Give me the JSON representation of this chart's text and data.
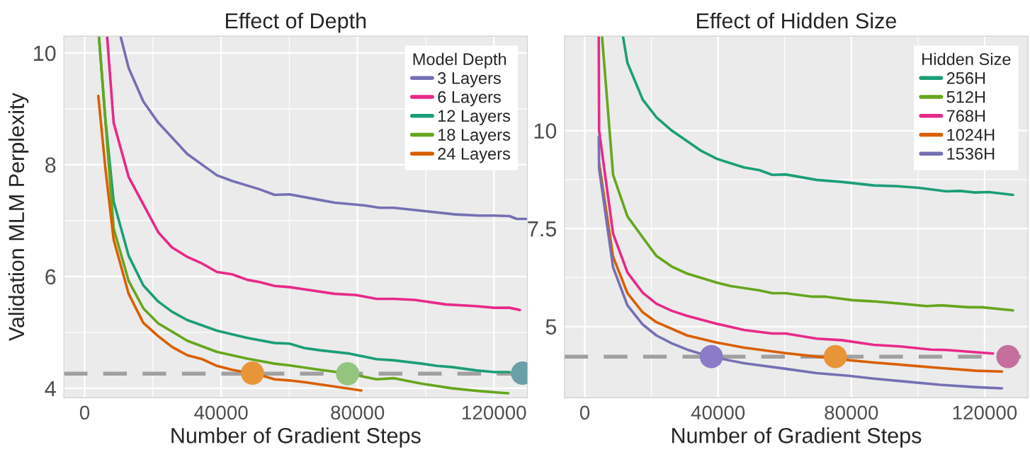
{
  "chart_data": [
    {
      "type": "line",
      "title": "Effect of Depth",
      "xlabel": "Number of Gradient Steps",
      "ylabel": "Validation MLM Perplexity",
      "legend_title": "Model Depth",
      "legend": "top right",
      "grid": true,
      "xlim": [
        -6100,
        129800
      ],
      "xticks": [
        0,
        40000,
        80000,
        120000
      ],
      "ylim": [
        3.83,
        10.3
      ],
      "yticks": [
        4,
        6,
        8,
        10
      ],
      "ref_lines": [
        {
          "axis": "y",
          "value": 4.26,
          "color": "#a0a0a0",
          "line_style": "dashed"
        }
      ],
      "series": [
        {
          "name": "3 Layers",
          "color": "#7570b3",
          "x": [
            10600,
            12900,
            17200,
            21600,
            30100,
            38800,
            43200,
            51300,
            55700,
            60000,
            68900,
            73300,
            82200,
            86500,
            90700,
            99800,
            108700,
            115700,
            120000,
            124600,
            126700,
            129500
          ],
          "values": [
            10.28,
            9.73,
            9.13,
            8.75,
            8.19,
            7.81,
            7.71,
            7.56,
            7.46,
            7.47,
            7.37,
            7.32,
            7.27,
            7.23,
            7.23,
            7.17,
            7.11,
            7.09,
            7.09,
            7.08,
            7.03,
            7.03
          ]
        },
        {
          "name": "6 Layers",
          "color": "#e7298a",
          "x": [
            6600,
            8500,
            12900,
            17200,
            21600,
            25600,
            30100,
            34500,
            38800,
            43200,
            47700,
            51300,
            55700,
            60000,
            64400,
            73300,
            79400,
            85600,
            90700,
            96800,
            105900,
            114600,
            120100,
            124600,
            127600
          ],
          "values": [
            10.28,
            8.75,
            7.78,
            7.29,
            6.79,
            6.52,
            6.35,
            6.23,
            6.08,
            6.04,
            5.94,
            5.9,
            5.83,
            5.81,
            5.77,
            5.69,
            5.67,
            5.6,
            5.6,
            5.58,
            5.5,
            5.47,
            5.44,
            5.44,
            5.4
          ]
        },
        {
          "name": "12 Layers",
          "color": "#1b9e77",
          "x": [
            4200,
            6100,
            8500,
            12900,
            17200,
            21600,
            25600,
            30100,
            38800,
            47700,
            55700,
            60000,
            64400,
            68900,
            77700,
            85600,
            90700,
            98900,
            103300,
            107600,
            114800,
            120100,
            124600
          ],
          "values": [
            10.28,
            8.8,
            7.34,
            6.37,
            5.84,
            5.55,
            5.37,
            5.22,
            5.03,
            4.9,
            4.81,
            4.8,
            4.72,
            4.68,
            4.62,
            4.52,
            4.5,
            4.44,
            4.4,
            4.38,
            4.32,
            4.29,
            4.29
          ]
        },
        {
          "name": "18 Layers",
          "color": "#66a61e",
          "x": [
            4200,
            8500,
            12900,
            17200,
            21600,
            30100,
            38800,
            47700,
            55700,
            60000,
            68900,
            77700,
            85600,
            90700,
            98900,
            107600,
            115700,
            124200
          ],
          "values": [
            10.28,
            6.86,
            5.92,
            5.43,
            5.16,
            4.85,
            4.65,
            4.53,
            4.44,
            4.41,
            4.33,
            4.26,
            4.16,
            4.18,
            4.08,
            4.0,
            3.95,
            3.91
          ]
        },
        {
          "name": "24 Layers",
          "color": "#d95f02",
          "x": [
            4000,
            6100,
            8500,
            12900,
            17200,
            21600,
            25600,
            30100,
            34500,
            38800,
            43200,
            51300,
            55700,
            60000,
            64400,
            73300,
            81100
          ],
          "values": [
            9.23,
            7.92,
            6.66,
            5.69,
            5.17,
            4.93,
            4.74,
            4.59,
            4.52,
            4.4,
            4.33,
            4.24,
            4.16,
            4.14,
            4.11,
            4.03,
            3.96
          ]
        },
        {
          "type": "scatter",
          "marker": "circle",
          "x": [
            49200,
            77100,
            128400
          ],
          "values": [
            4.27,
            4.26,
            4.27
          ],
          "colors": [
            "#e8953a",
            "#94c47d",
            "#6a9fa8"
          ]
        }
      ]
    },
    {
      "type": "line",
      "title": "Effect of Hidden Size",
      "xlabel": "Number of Gradient Steps",
      "legend_title": "Hidden Size",
      "legend": "top right",
      "grid": true,
      "xlim": [
        -6100,
        133000
      ],
      "xticks": [
        0,
        40000,
        80000,
        120000
      ],
      "ylim": [
        3.18,
        12.41
      ],
      "yticks": [
        5,
        7.5,
        10
      ],
      "ref_lines": [
        {
          "axis": "y",
          "value": 4.23,
          "color": "#a0a0a0",
          "line_style": "dashed"
        }
      ],
      "series": [
        {
          "name": "256H",
          "color": "#1b9e77",
          "x": [
            11500,
            12800,
            17400,
            21500,
            26100,
            30700,
            35000,
            39600,
            47800,
            52400,
            56300,
            60300,
            69600,
            77100,
            86700,
            93900,
            100200,
            108500,
            112600,
            117100,
            121200,
            128500
          ],
          "values": [
            12.39,
            11.73,
            10.79,
            10.34,
            10.0,
            9.73,
            9.48,
            9.28,
            9.06,
            8.99,
            8.87,
            8.88,
            8.74,
            8.69,
            8.6,
            8.58,
            8.54,
            8.45,
            8.46,
            8.42,
            8.43,
            8.36
          ]
        },
        {
          "name": "512H",
          "color": "#66a61e",
          "x": [
            5200,
            8500,
            12800,
            17400,
            21500,
            26100,
            30700,
            39600,
            43900,
            52400,
            56300,
            60300,
            68300,
            72300,
            80400,
            86700,
            93900,
            102600,
            107000,
            115100,
            119200,
            128500
          ],
          "values": [
            12.39,
            8.87,
            7.81,
            7.27,
            6.8,
            6.53,
            6.35,
            6.12,
            6.03,
            5.92,
            5.85,
            5.85,
            5.76,
            5.76,
            5.67,
            5.64,
            5.59,
            5.52,
            5.54,
            5.49,
            5.49,
            5.41
          ]
        },
        {
          "name": "768H",
          "color": "#e7298a",
          "x": [
            4200,
            4300,
            8500,
            12800,
            17400,
            21500,
            26100,
            30700,
            39600,
            47800,
            56300,
            60300,
            69600,
            77100,
            86700,
            94700,
            103900,
            108500,
            117500,
            122500
          ],
          "values": [
            12.39,
            10.0,
            7.37,
            6.38,
            5.86,
            5.58,
            5.4,
            5.27,
            5.07,
            4.91,
            4.82,
            4.82,
            4.69,
            4.65,
            4.53,
            4.49,
            4.41,
            4.4,
            4.34,
            4.31
          ]
        },
        {
          "name": "1024H",
          "color": "#d95f02",
          "x": [
            4300,
            8500,
            12800,
            17400,
            21500,
            30700,
            39600,
            47800,
            60300,
            69600,
            79200,
            86700,
            96700,
            106700,
            117500,
            125200
          ],
          "values": [
            9.17,
            6.78,
            5.85,
            5.36,
            5.11,
            4.77,
            4.59,
            4.46,
            4.32,
            4.23,
            4.14,
            4.08,
            4.01,
            3.94,
            3.87,
            3.85
          ]
        },
        {
          "name": "1536H",
          "color": "#7570b3",
          "x": [
            4200,
            4300,
            8500,
            12800,
            17400,
            21500,
            26100,
            30700,
            37700,
            47800,
            60300,
            69600,
            79200,
            86700,
            96700,
            106700,
            117500,
            125200
          ],
          "values": [
            9.84,
            9.03,
            6.51,
            5.54,
            5.05,
            4.77,
            4.57,
            4.41,
            4.23,
            4.06,
            3.92,
            3.81,
            3.74,
            3.67,
            3.59,
            3.51,
            3.45,
            3.42
          ]
        },
        {
          "type": "scatter",
          "marker": "circle",
          "x": [
            38000,
            75200,
            127000
          ],
          "values": [
            4.23,
            4.23,
            4.23
          ],
          "colors": [
            "#8b7cc8",
            "#e8953a",
            "#c46f9e"
          ]
        }
      ]
    }
  ]
}
